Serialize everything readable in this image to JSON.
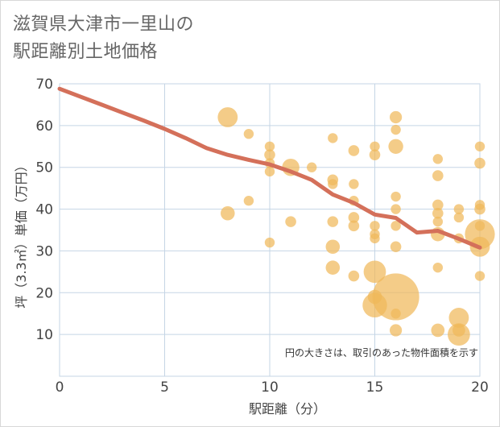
{
  "title_lines": [
    "滋賀県大津市一里山の",
    "駅距離別土地価格"
  ],
  "chart_data": {
    "type": "scatter",
    "xlabel": "駅距離（分）",
    "ylabel": "坪（3.3㎡）単価（万円）",
    "xlim": [
      0,
      20
    ],
    "ylim": [
      0,
      70
    ],
    "xticks": [
      0,
      5,
      10,
      15,
      20
    ],
    "yticks": [
      10,
      20,
      30,
      40,
      50,
      60,
      70
    ],
    "grid": true,
    "note": "円の大きさは、取引のあった物件面積を示す",
    "colors": {
      "bubble": "#f0b95a",
      "line": "#d4705a",
      "grid": "#c5d5e5"
    },
    "bubbles": [
      {
        "x": 8,
        "y": 62,
        "s": 4
      },
      {
        "x": 8,
        "y": 39,
        "s": 2
      },
      {
        "x": 9,
        "y": 58,
        "s": 1
      },
      {
        "x": 9,
        "y": 42,
        "s": 1
      },
      {
        "x": 10,
        "y": 55,
        "s": 1
      },
      {
        "x": 10,
        "y": 53,
        "s": 1.2
      },
      {
        "x": 10,
        "y": 51,
        "s": 1
      },
      {
        "x": 10,
        "y": 49,
        "s": 1
      },
      {
        "x": 10,
        "y": 32,
        "s": 1
      },
      {
        "x": 11,
        "y": 50,
        "s": 3
      },
      {
        "x": 11,
        "y": 37,
        "s": 1.2
      },
      {
        "x": 12,
        "y": 50,
        "s": 1
      },
      {
        "x": 13,
        "y": 57,
        "s": 1
      },
      {
        "x": 13,
        "y": 47,
        "s": 1.2
      },
      {
        "x": 13,
        "y": 46,
        "s": 1
      },
      {
        "x": 13,
        "y": 37,
        "s": 1.2
      },
      {
        "x": 13,
        "y": 31,
        "s": 2
      },
      {
        "x": 13,
        "y": 26,
        "s": 2
      },
      {
        "x": 14,
        "y": 54,
        "s": 1.2
      },
      {
        "x": 14,
        "y": 46,
        "s": 1
      },
      {
        "x": 14,
        "y": 42,
        "s": 1
      },
      {
        "x": 14,
        "y": 38,
        "s": 1.2
      },
      {
        "x": 14,
        "y": 36,
        "s": 1.2
      },
      {
        "x": 14,
        "y": 24,
        "s": 1.2
      },
      {
        "x": 15,
        "y": 55,
        "s": 1
      },
      {
        "x": 15,
        "y": 53,
        "s": 1.2
      },
      {
        "x": 15,
        "y": 36,
        "s": 1
      },
      {
        "x": 15,
        "y": 34,
        "s": 1
      },
      {
        "x": 15,
        "y": 33,
        "s": 1
      },
      {
        "x": 15,
        "y": 25,
        "s": 5
      },
      {
        "x": 15,
        "y": 19,
        "s": 2
      },
      {
        "x": 15,
        "y": 17,
        "s": 6
      },
      {
        "x": 16,
        "y": 62,
        "s": 1.5
      },
      {
        "x": 16,
        "y": 59,
        "s": 1
      },
      {
        "x": 16,
        "y": 55,
        "s": 2.2
      },
      {
        "x": 16,
        "y": 43,
        "s": 1
      },
      {
        "x": 16,
        "y": 40,
        "s": 1
      },
      {
        "x": 16,
        "y": 36,
        "s": 1
      },
      {
        "x": 16,
        "y": 31,
        "s": 1.2
      },
      {
        "x": 16,
        "y": 19,
        "s": 22
      },
      {
        "x": 16,
        "y": 15,
        "s": 1
      },
      {
        "x": 16,
        "y": 11,
        "s": 1.5
      },
      {
        "x": 18,
        "y": 52,
        "s": 1
      },
      {
        "x": 18,
        "y": 48,
        "s": 1.2
      },
      {
        "x": 18,
        "y": 41,
        "s": 1.2
      },
      {
        "x": 18,
        "y": 39,
        "s": 1.2
      },
      {
        "x": 18,
        "y": 37,
        "s": 1
      },
      {
        "x": 18,
        "y": 34,
        "s": 2
      },
      {
        "x": 18,
        "y": 26,
        "s": 1
      },
      {
        "x": 18,
        "y": 11,
        "s": 1.8
      },
      {
        "x": 19,
        "y": 40,
        "s": 1
      },
      {
        "x": 19,
        "y": 38,
        "s": 1
      },
      {
        "x": 19,
        "y": 33,
        "s": 1
      },
      {
        "x": 19,
        "y": 14,
        "s": 4
      },
      {
        "x": 19,
        "y": 11,
        "s": 1.6
      },
      {
        "x": 19,
        "y": 10,
        "s": 5
      },
      {
        "x": 20,
        "y": 55,
        "s": 1
      },
      {
        "x": 20,
        "y": 51,
        "s": 1.2
      },
      {
        "x": 20,
        "y": 41,
        "s": 1
      },
      {
        "x": 20,
        "y": 40,
        "s": 1.2
      },
      {
        "x": 20,
        "y": 36,
        "s": 1
      },
      {
        "x": 20,
        "y": 34,
        "s": 9
      },
      {
        "x": 20,
        "y": 31,
        "s": 4
      },
      {
        "x": 20,
        "y": 24,
        "s": 1
      }
    ],
    "trend": {
      "x": [
        0,
        1,
        2,
        3,
        4,
        5,
        6,
        7,
        8,
        9,
        10,
        11,
        12,
        13,
        14,
        15,
        16,
        17,
        18,
        19,
        20
      ],
      "y": [
        68.8,
        66.9,
        65.0,
        63.1,
        61.2,
        59.2,
        57.0,
        54.6,
        53.0,
        51.8,
        50.7,
        49.0,
        47.0,
        43.5,
        41.5,
        38.7,
        37.9,
        34.4,
        34.8,
        32.9,
        30.8
      ]
    }
  }
}
